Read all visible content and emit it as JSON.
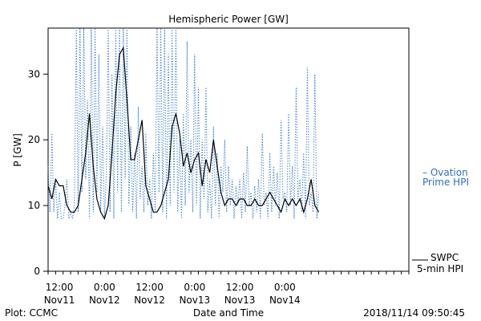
{
  "chart_data": {
    "type": "line",
    "title": "Hemispheric Power [GW]",
    "xlabel": "Date and Time",
    "ylabel": "P [GW]",
    "ylim": [
      0,
      37
    ],
    "yticks": [
      0,
      10,
      20,
      30
    ],
    "xlim": [
      "2018-11-11T09:00",
      "2018-11-15T09:00"
    ],
    "xtick_labels": [
      {
        "time": "12:00",
        "date": "Nov11",
        "t": "2018-11-11T12:00"
      },
      {
        "time": "0:00",
        "date": "Nov12",
        "t": "2018-11-12T00:00"
      },
      {
        "time": "12:00",
        "date": "Nov12",
        "t": "2018-11-12T12:00"
      },
      {
        "time": "0:00",
        "date": "Nov13",
        "t": "2018-11-13T00:00"
      },
      {
        "time": "12:00",
        "date": "Nov13",
        "t": "2018-11-13T12:00"
      },
      {
        "time": "0:00",
        "date": "Nov14",
        "t": "2018-11-14T00:00"
      }
    ],
    "grid": false,
    "legend_position": "right",
    "series": [
      {
        "name": "SWPC 5-min HPI",
        "legend_lines": [
          "SWPC",
          "5-min HPI"
        ],
        "style": "solid",
        "color": "#000000",
        "x": [
          "2018-11-11T09:00",
          "2018-11-11T10:00",
          "2018-11-11T11:00",
          "2018-11-11T12:00",
          "2018-11-11T13:00",
          "2018-11-11T14:00",
          "2018-11-11T15:00",
          "2018-11-11T16:00",
          "2018-11-11T17:00",
          "2018-11-11T18:00",
          "2018-11-11T19:00",
          "2018-11-11T20:00",
          "2018-11-11T21:00",
          "2018-11-11T22:00",
          "2018-11-11T23:00",
          "2018-11-12T00:00",
          "2018-11-12T01:00",
          "2018-11-12T02:00",
          "2018-11-12T03:00",
          "2018-11-12T04:00",
          "2018-11-12T05:00",
          "2018-11-12T06:00",
          "2018-11-12T07:00",
          "2018-11-12T08:00",
          "2018-11-12T09:00",
          "2018-11-12T10:00",
          "2018-11-12T11:00",
          "2018-11-12T12:00",
          "2018-11-12T13:00",
          "2018-11-12T14:00",
          "2018-11-12T15:00",
          "2018-11-12T16:00",
          "2018-11-12T17:00",
          "2018-11-12T18:00",
          "2018-11-12T19:00",
          "2018-11-12T20:00",
          "2018-11-12T21:00",
          "2018-11-12T22:00",
          "2018-11-12T23:00",
          "2018-11-13T00:00",
          "2018-11-13T01:00",
          "2018-11-13T02:00",
          "2018-11-13T03:00",
          "2018-11-13T04:00",
          "2018-11-13T05:00",
          "2018-11-13T06:00",
          "2018-11-13T07:00",
          "2018-11-13T08:00",
          "2018-11-13T09:00",
          "2018-11-13T10:00",
          "2018-11-13T11:00",
          "2018-11-13T12:00",
          "2018-11-13T13:00",
          "2018-11-13T14:00",
          "2018-11-13T15:00",
          "2018-11-13T16:00",
          "2018-11-13T17:00",
          "2018-11-13T18:00",
          "2018-11-13T19:00",
          "2018-11-13T20:00",
          "2018-11-13T21:00",
          "2018-11-13T22:00",
          "2018-11-13T23:00",
          "2018-11-14T00:00",
          "2018-11-14T01:00",
          "2018-11-14T02:00",
          "2018-11-14T03:00",
          "2018-11-14T04:00",
          "2018-11-14T05:00",
          "2018-11-14T06:00",
          "2018-11-14T07:00",
          "2018-11-14T08:00",
          "2018-11-14T09:00"
        ],
        "values": [
          13,
          11,
          14,
          13,
          13,
          10,
          9,
          9,
          10,
          14,
          18,
          24,
          16,
          11,
          9,
          8,
          10,
          18,
          27,
          33,
          34,
          26,
          17,
          17,
          20,
          23,
          13,
          11,
          9,
          9,
          10,
          12,
          14,
          22,
          24,
          21,
          16,
          18,
          15,
          17,
          18,
          13,
          17,
          15,
          20,
          16,
          12,
          10,
          11,
          11,
          10,
          11,
          11,
          10,
          10,
          11,
          10,
          10,
          11,
          12,
          11,
          10,
          9,
          11,
          10,
          11,
          10,
          11,
          9,
          11,
          14,
          10,
          9
        ]
      },
      {
        "name": "Ovation Prime HPI",
        "legend_lines": [
          "– Ovation",
          "Prime HPI"
        ],
        "style": "dotted",
        "color": "#2a6fce",
        "x": [
          "2018-11-11T09:00",
          "2018-11-11T09:30",
          "2018-11-11T10:00",
          "2018-11-11T10:30",
          "2018-11-11T11:00",
          "2018-11-11T11:30",
          "2018-11-11T12:00",
          "2018-11-11T12:30",
          "2018-11-11T13:00",
          "2018-11-11T13:30",
          "2018-11-11T14:00",
          "2018-11-11T14:30",
          "2018-11-11T15:00",
          "2018-11-11T15:30",
          "2018-11-11T16:00",
          "2018-11-11T16:30",
          "2018-11-11T17:00",
          "2018-11-11T17:30",
          "2018-11-11T18:00",
          "2018-11-11T18:30",
          "2018-11-11T19:00",
          "2018-11-11T19:30",
          "2018-11-11T20:00",
          "2018-11-11T20:30",
          "2018-11-11T21:00",
          "2018-11-11T21:30",
          "2018-11-11T22:00",
          "2018-11-11T22:30",
          "2018-11-11T23:00",
          "2018-11-11T23:30",
          "2018-11-12T00:00",
          "2018-11-12T00:30",
          "2018-11-12T01:00",
          "2018-11-12T01:30",
          "2018-11-12T02:00",
          "2018-11-12T02:30",
          "2018-11-12T03:00",
          "2018-11-12T03:30",
          "2018-11-12T04:00",
          "2018-11-12T04:30",
          "2018-11-12T05:00",
          "2018-11-12T05:30",
          "2018-11-12T06:00",
          "2018-11-12T06:30",
          "2018-11-12T07:00",
          "2018-11-12T07:30",
          "2018-11-12T08:00",
          "2018-11-12T08:30",
          "2018-11-12T09:00",
          "2018-11-12T09:30",
          "2018-11-12T10:00",
          "2018-11-12T10:30",
          "2018-11-12T11:00",
          "2018-11-12T11:30",
          "2018-11-12T12:00",
          "2018-11-12T12:30",
          "2018-11-12T13:00",
          "2018-11-12T13:30",
          "2018-11-12T14:00",
          "2018-11-12T14:30",
          "2018-11-12T15:00",
          "2018-11-12T15:30",
          "2018-11-12T16:00",
          "2018-11-12T16:30",
          "2018-11-12T17:00",
          "2018-11-12T17:30",
          "2018-11-12T18:00",
          "2018-11-12T18:30",
          "2018-11-12T19:00",
          "2018-11-12T19:30",
          "2018-11-12T20:00",
          "2018-11-12T20:30",
          "2018-11-12T21:00",
          "2018-11-12T21:30",
          "2018-11-12T22:00",
          "2018-11-12T22:30",
          "2018-11-12T23:00",
          "2018-11-12T23:30",
          "2018-11-13T00:00",
          "2018-11-13T00:30",
          "2018-11-13T01:00",
          "2018-11-13T01:30",
          "2018-11-13T02:00",
          "2018-11-13T02:30",
          "2018-11-13T03:00",
          "2018-11-13T03:30",
          "2018-11-13T04:00",
          "2018-11-13T04:30",
          "2018-11-13T05:00",
          "2018-11-13T05:30",
          "2018-11-13T06:00",
          "2018-11-13T06:30",
          "2018-11-13T07:00",
          "2018-11-13T07:30",
          "2018-11-13T08:00",
          "2018-11-13T08:30",
          "2018-11-13T09:00",
          "2018-11-13T09:30",
          "2018-11-13T10:00",
          "2018-11-13T10:30",
          "2018-11-13T11:00",
          "2018-11-13T11:30",
          "2018-11-13T12:00",
          "2018-11-13T12:30",
          "2018-11-13T13:00",
          "2018-11-13T13:30",
          "2018-11-13T14:00",
          "2018-11-13T14:30",
          "2018-11-13T15:00",
          "2018-11-13T15:30",
          "2018-11-13T16:00",
          "2018-11-13T16:30",
          "2018-11-13T17:00",
          "2018-11-13T17:30",
          "2018-11-13T18:00",
          "2018-11-13T18:30",
          "2018-11-13T19:00",
          "2018-11-13T19:30",
          "2018-11-13T20:00",
          "2018-11-13T20:30",
          "2018-11-13T21:00",
          "2018-11-13T21:30",
          "2018-11-13T22:00",
          "2018-11-13T22:30",
          "2018-11-13T23:00",
          "2018-11-13T23:30",
          "2018-11-14T00:00",
          "2018-11-14T00:30",
          "2018-11-14T01:00",
          "2018-11-14T01:30",
          "2018-11-14T02:00",
          "2018-11-14T02:30",
          "2018-11-14T03:00",
          "2018-11-14T03:30",
          "2018-11-14T04:00",
          "2018-11-14T04:30",
          "2018-11-14T05:00",
          "2018-11-14T05:30",
          "2018-11-14T06:00",
          "2018-11-14T06:30",
          "2018-11-14T07:00",
          "2018-11-14T07:30",
          "2018-11-14T08:00",
          "2018-11-14T08:30",
          "2018-11-14T09:00"
        ],
        "values": [
          16,
          9,
          21,
          9,
          14,
          8,
          12,
          8,
          8,
          10,
          14,
          8,
          9,
          8,
          10,
          37,
          9,
          37,
          12,
          37,
          14,
          26,
          8,
          37,
          9,
          37,
          12,
          33,
          9,
          22,
          8,
          15,
          37,
          9,
          30,
          8,
          37,
          12,
          37,
          9,
          37,
          14,
          37,
          10,
          22,
          9,
          18,
          8,
          25,
          11,
          16,
          9,
          21,
          10,
          14,
          8,
          18,
          9,
          37,
          12,
          37,
          9,
          37,
          8,
          33,
          10,
          37,
          12,
          37,
          9,
          20,
          8,
          24,
          10,
          35,
          12,
          20,
          9,
          33,
          10,
          28,
          8,
          20,
          11,
          28,
          9,
          14,
          8,
          22,
          10,
          18,
          8,
          16,
          12,
          20,
          9,
          16,
          10,
          14,
          8,
          13,
          10,
          14,
          8,
          15,
          9,
          19,
          10,
          12,
          8,
          13,
          9,
          14,
          8,
          21,
          10,
          12,
          8,
          18,
          9,
          16,
          10,
          15,
          8,
          23,
          11,
          12,
          9,
          24,
          10,
          16,
          8,
          28,
          11,
          14,
          9,
          18,
          8,
          31,
          10,
          12,
          9,
          30,
          8,
          12
        ]
      }
    ]
  },
  "footer": {
    "left": "Plot: CCMC",
    "right": "2018/11/14 09:50:45"
  }
}
